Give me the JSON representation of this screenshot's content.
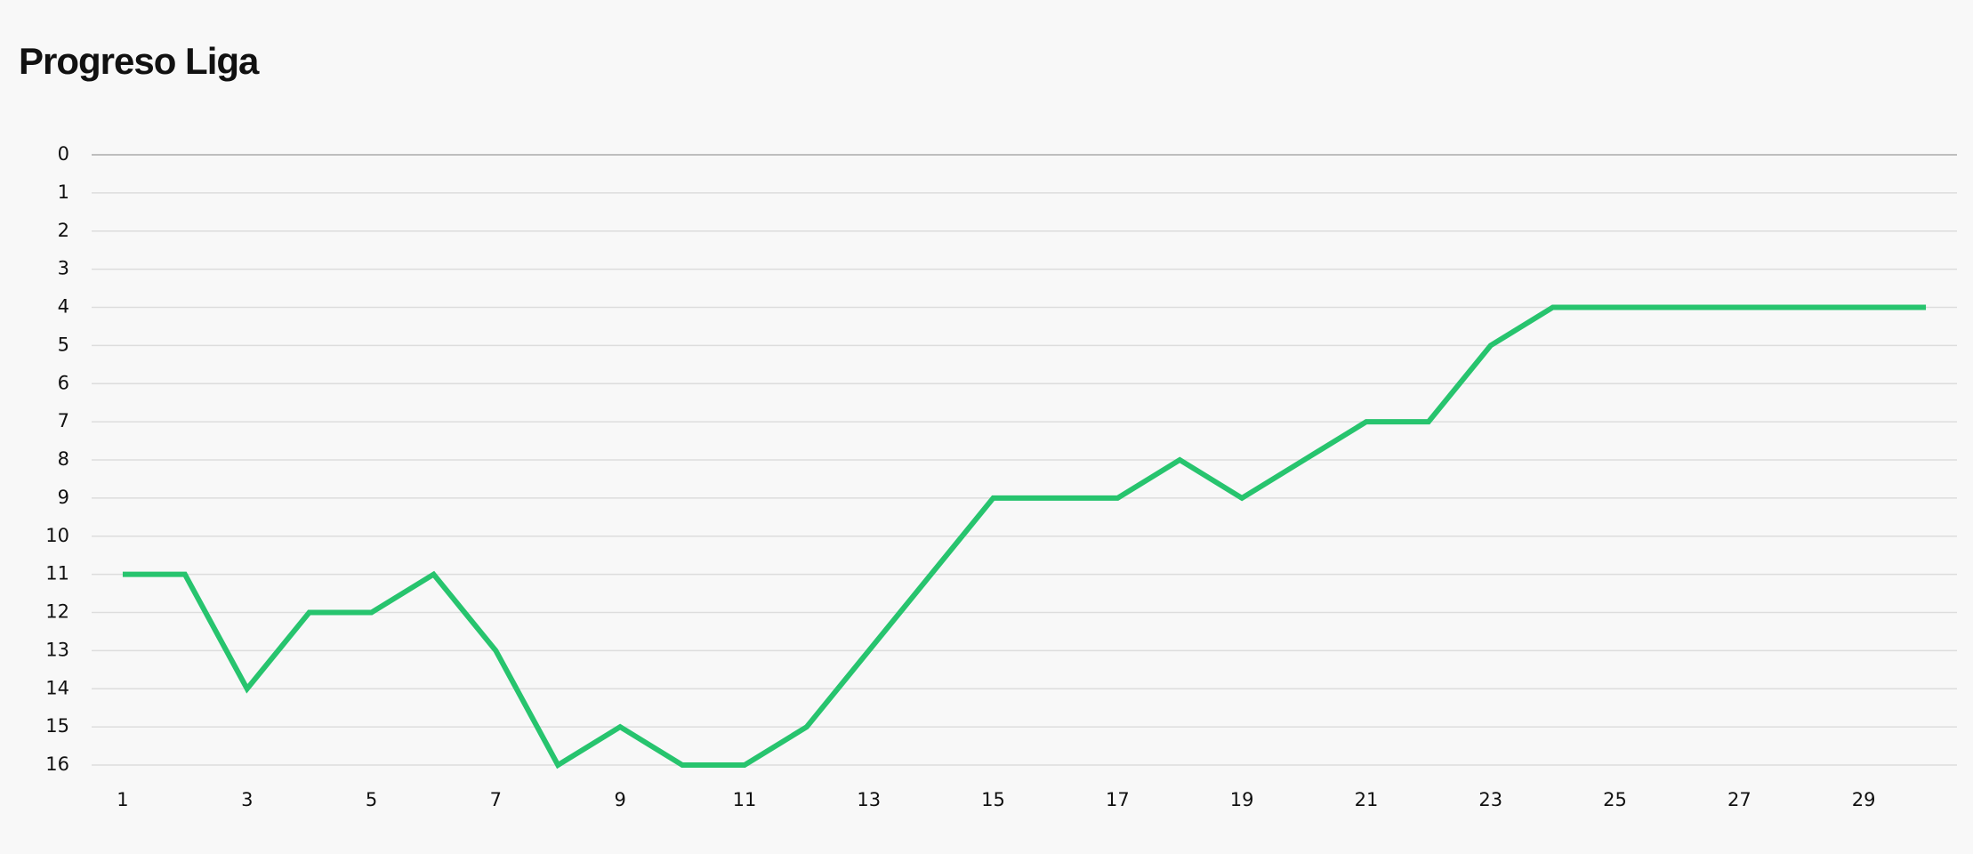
{
  "chart_data": {
    "type": "line",
    "title": "Progreso Liga",
    "x": [
      1,
      2,
      3,
      4,
      5,
      6,
      7,
      8,
      9,
      10,
      11,
      12,
      13,
      14,
      15,
      16,
      17,
      18,
      19,
      20,
      21,
      22,
      23,
      24,
      25,
      26,
      27,
      28,
      29,
      30
    ],
    "values": [
      11,
      11,
      14,
      12,
      12,
      11,
      13,
      16,
      15,
      16,
      16,
      15,
      13,
      11,
      9,
      9,
      9,
      8,
      9,
      8,
      7,
      7,
      5,
      4,
      4,
      4,
      4,
      4,
      4,
      4
    ],
    "color": "#27c46e",
    "xlim": [
      0.5,
      30.5
    ],
    "xticks": [
      1,
      3,
      5,
      7,
      9,
      11,
      13,
      15,
      17,
      19,
      21,
      23,
      25,
      27,
      29
    ],
    "ylim": [
      0,
      16
    ],
    "yticks": [
      0,
      1,
      2,
      3,
      4,
      5,
      6,
      7,
      8,
      9,
      10,
      11,
      12,
      13,
      14,
      15,
      16
    ],
    "invert_y": true,
    "grid": true
  }
}
